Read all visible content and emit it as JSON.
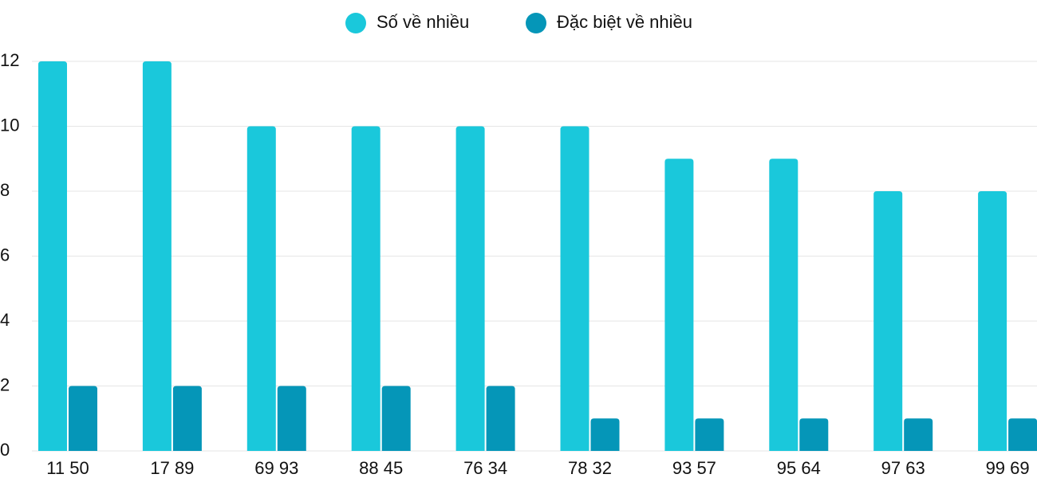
{
  "chart_data": {
    "type": "bar",
    "categories": [
      "11 50",
      "17 89",
      "69 93",
      "88 45",
      "76 34",
      "78 32",
      "93 57",
      "95 64",
      "97 63",
      "99 69"
    ],
    "series": [
      {
        "name": "Số về nhiều",
        "color": "#1ac8db",
        "values": [
          12,
          12,
          10,
          10,
          10,
          10,
          9,
          9,
          8,
          8
        ]
      },
      {
        "name": "Đặc biệt về nhiều",
        "color": "#0596b8",
        "values": [
          2,
          2,
          2,
          2,
          2,
          1,
          1,
          1,
          1,
          1
        ]
      }
    ],
    "ylim": [
      0,
      12
    ],
    "yticks": [
      0,
      2,
      4,
      6,
      8,
      10,
      12
    ],
    "grid": true,
    "legend": "top"
  }
}
